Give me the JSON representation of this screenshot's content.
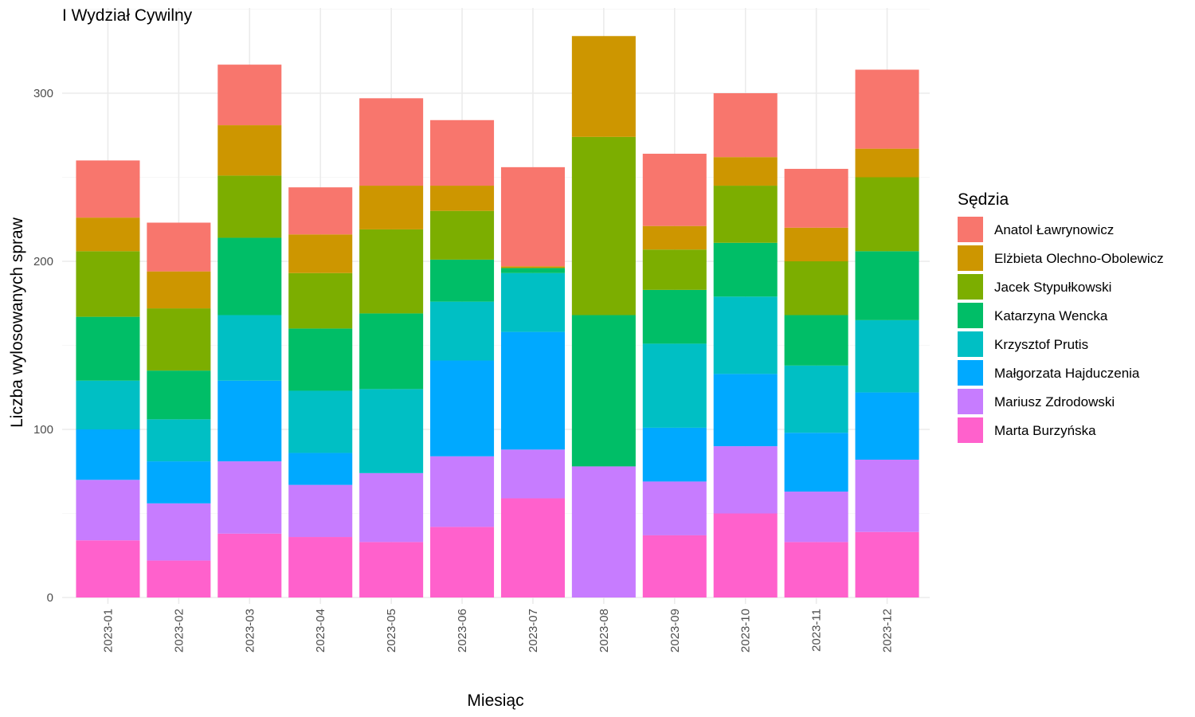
{
  "chart_data": {
    "type": "bar",
    "stacked": true,
    "title": "I Wydział Cywilny",
    "xlabel": "Miesiąc",
    "ylabel": "Liczba wylosowanych spraw",
    "ylim": [
      0,
      335
    ],
    "yticks": [
      0,
      100,
      200,
      300
    ],
    "grid": true,
    "legend": {
      "title": "Sędzia",
      "position": "right"
    },
    "categories": [
      "2023-01",
      "2023-02",
      "2023-03",
      "2023-04",
      "2023-05",
      "2023-06",
      "2023-07",
      "2023-08",
      "2023-09",
      "2023-10",
      "2023-11",
      "2023-12"
    ],
    "series": [
      {
        "name": "Anatol Ławrynowicz",
        "color": "#F8766D",
        "values": [
          34,
          29,
          36,
          28,
          52,
          39,
          59,
          0,
          43,
          38,
          35,
          47
        ]
      },
      {
        "name": "Elżbieta Olechno-Obolewicz",
        "color": "#CD9600",
        "values": [
          20,
          22,
          30,
          23,
          26,
          15,
          1,
          60,
          14,
          17,
          20,
          17
        ]
      },
      {
        "name": "Jacek Stypułkowski",
        "color": "#7CAE00",
        "values": [
          39,
          37,
          37,
          33,
          50,
          29,
          0,
          106,
          24,
          34,
          32,
          44
        ]
      },
      {
        "name": "Katarzyna Wencka",
        "color": "#00BE67",
        "values": [
          38,
          29,
          46,
          37,
          45,
          25,
          3,
          90,
          32,
          32,
          30,
          41
        ]
      },
      {
        "name": "Krzysztof Prutis",
        "color": "#00BFC4",
        "values": [
          29,
          25,
          39,
          37,
          50,
          35,
          35,
          0,
          50,
          46,
          40,
          43
        ]
      },
      {
        "name": "Małgorzata Hajduczenia",
        "color": "#00A9FF",
        "values": [
          30,
          25,
          48,
          19,
          0,
          57,
          70,
          0,
          32,
          43,
          35,
          40
        ]
      },
      {
        "name": "Mariusz Zdrodowski",
        "color": "#C77CFF",
        "values": [
          36,
          34,
          43,
          31,
          41,
          42,
          29,
          78,
          32,
          40,
          30,
          43
        ]
      },
      {
        "name": "Marta Burzyńska",
        "color": "#FF61CC",
        "values": [
          34,
          22,
          38,
          36,
          33,
          42,
          59,
          0,
          37,
          50,
          33,
          39
        ]
      }
    ]
  }
}
